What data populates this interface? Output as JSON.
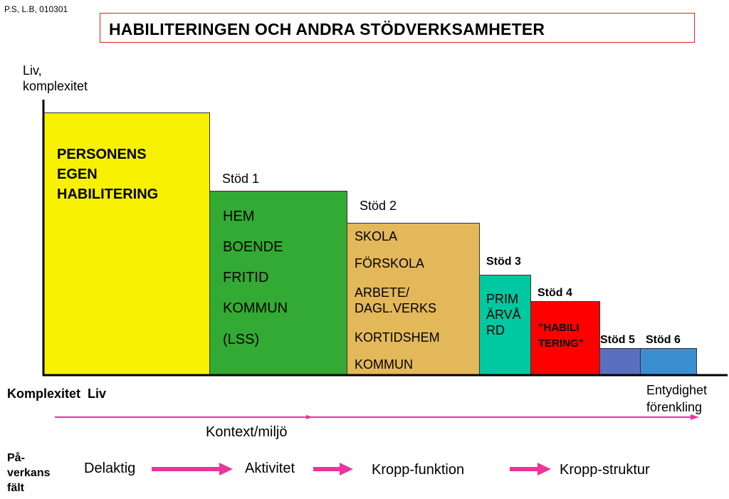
{
  "credit": "P.S, L.B, 010301",
  "title": "HABILITERINGEN OCH ANDRA STÖDVERKSAMHETER",
  "y_axis_label": "Liv,\nkomplexitet",
  "colors": {
    "personens": "#f7f000",
    "stod1": "#33aa33",
    "stod2": "#e3b85a",
    "stod3": "#00c8a0",
    "stod4": "#ff0000",
    "stod5": "#5a6fc0",
    "stod6": "#3a8fd0",
    "arrow": "#ee3399",
    "title_border": "#e02020"
  },
  "blocks": {
    "personens": {
      "text": "PERSONENS\nEGEN\nHABILITERING"
    },
    "stod1": {
      "label": "Stöd 1",
      "items": [
        "HEM",
        "BOENDE",
        "FRITID",
        "KOMMUN",
        "(LSS)"
      ]
    },
    "stod2": {
      "label": "Stöd 2",
      "items": [
        "SKOLA",
        "FÖRSKOLA",
        "ARBETE/\nDAGL.VERKS",
        "KORTIDSHEM",
        "KOMMUN"
      ]
    },
    "stod3": {
      "label": "Stöd 3",
      "text": "PRIM\nÄRVÅ\nRD"
    },
    "stod4": {
      "label": "Stöd 4",
      "text": "”HABILI\nTERING”"
    },
    "stod5": {
      "label": "Stöd 5"
    },
    "stod6": {
      "label": "Stöd 6"
    }
  },
  "x_axis": {
    "left_label": "Komplexitet  Liv",
    "right_label": "Entydighet\nförenkling",
    "arrow_label": "Kontext/miljö"
  },
  "verkans": {
    "label": "På-\nverkans\nfält",
    "steps": [
      "Delaktig",
      "Aktivitet",
      "Kropp-funktion",
      "Kropp-struktur"
    ]
  }
}
